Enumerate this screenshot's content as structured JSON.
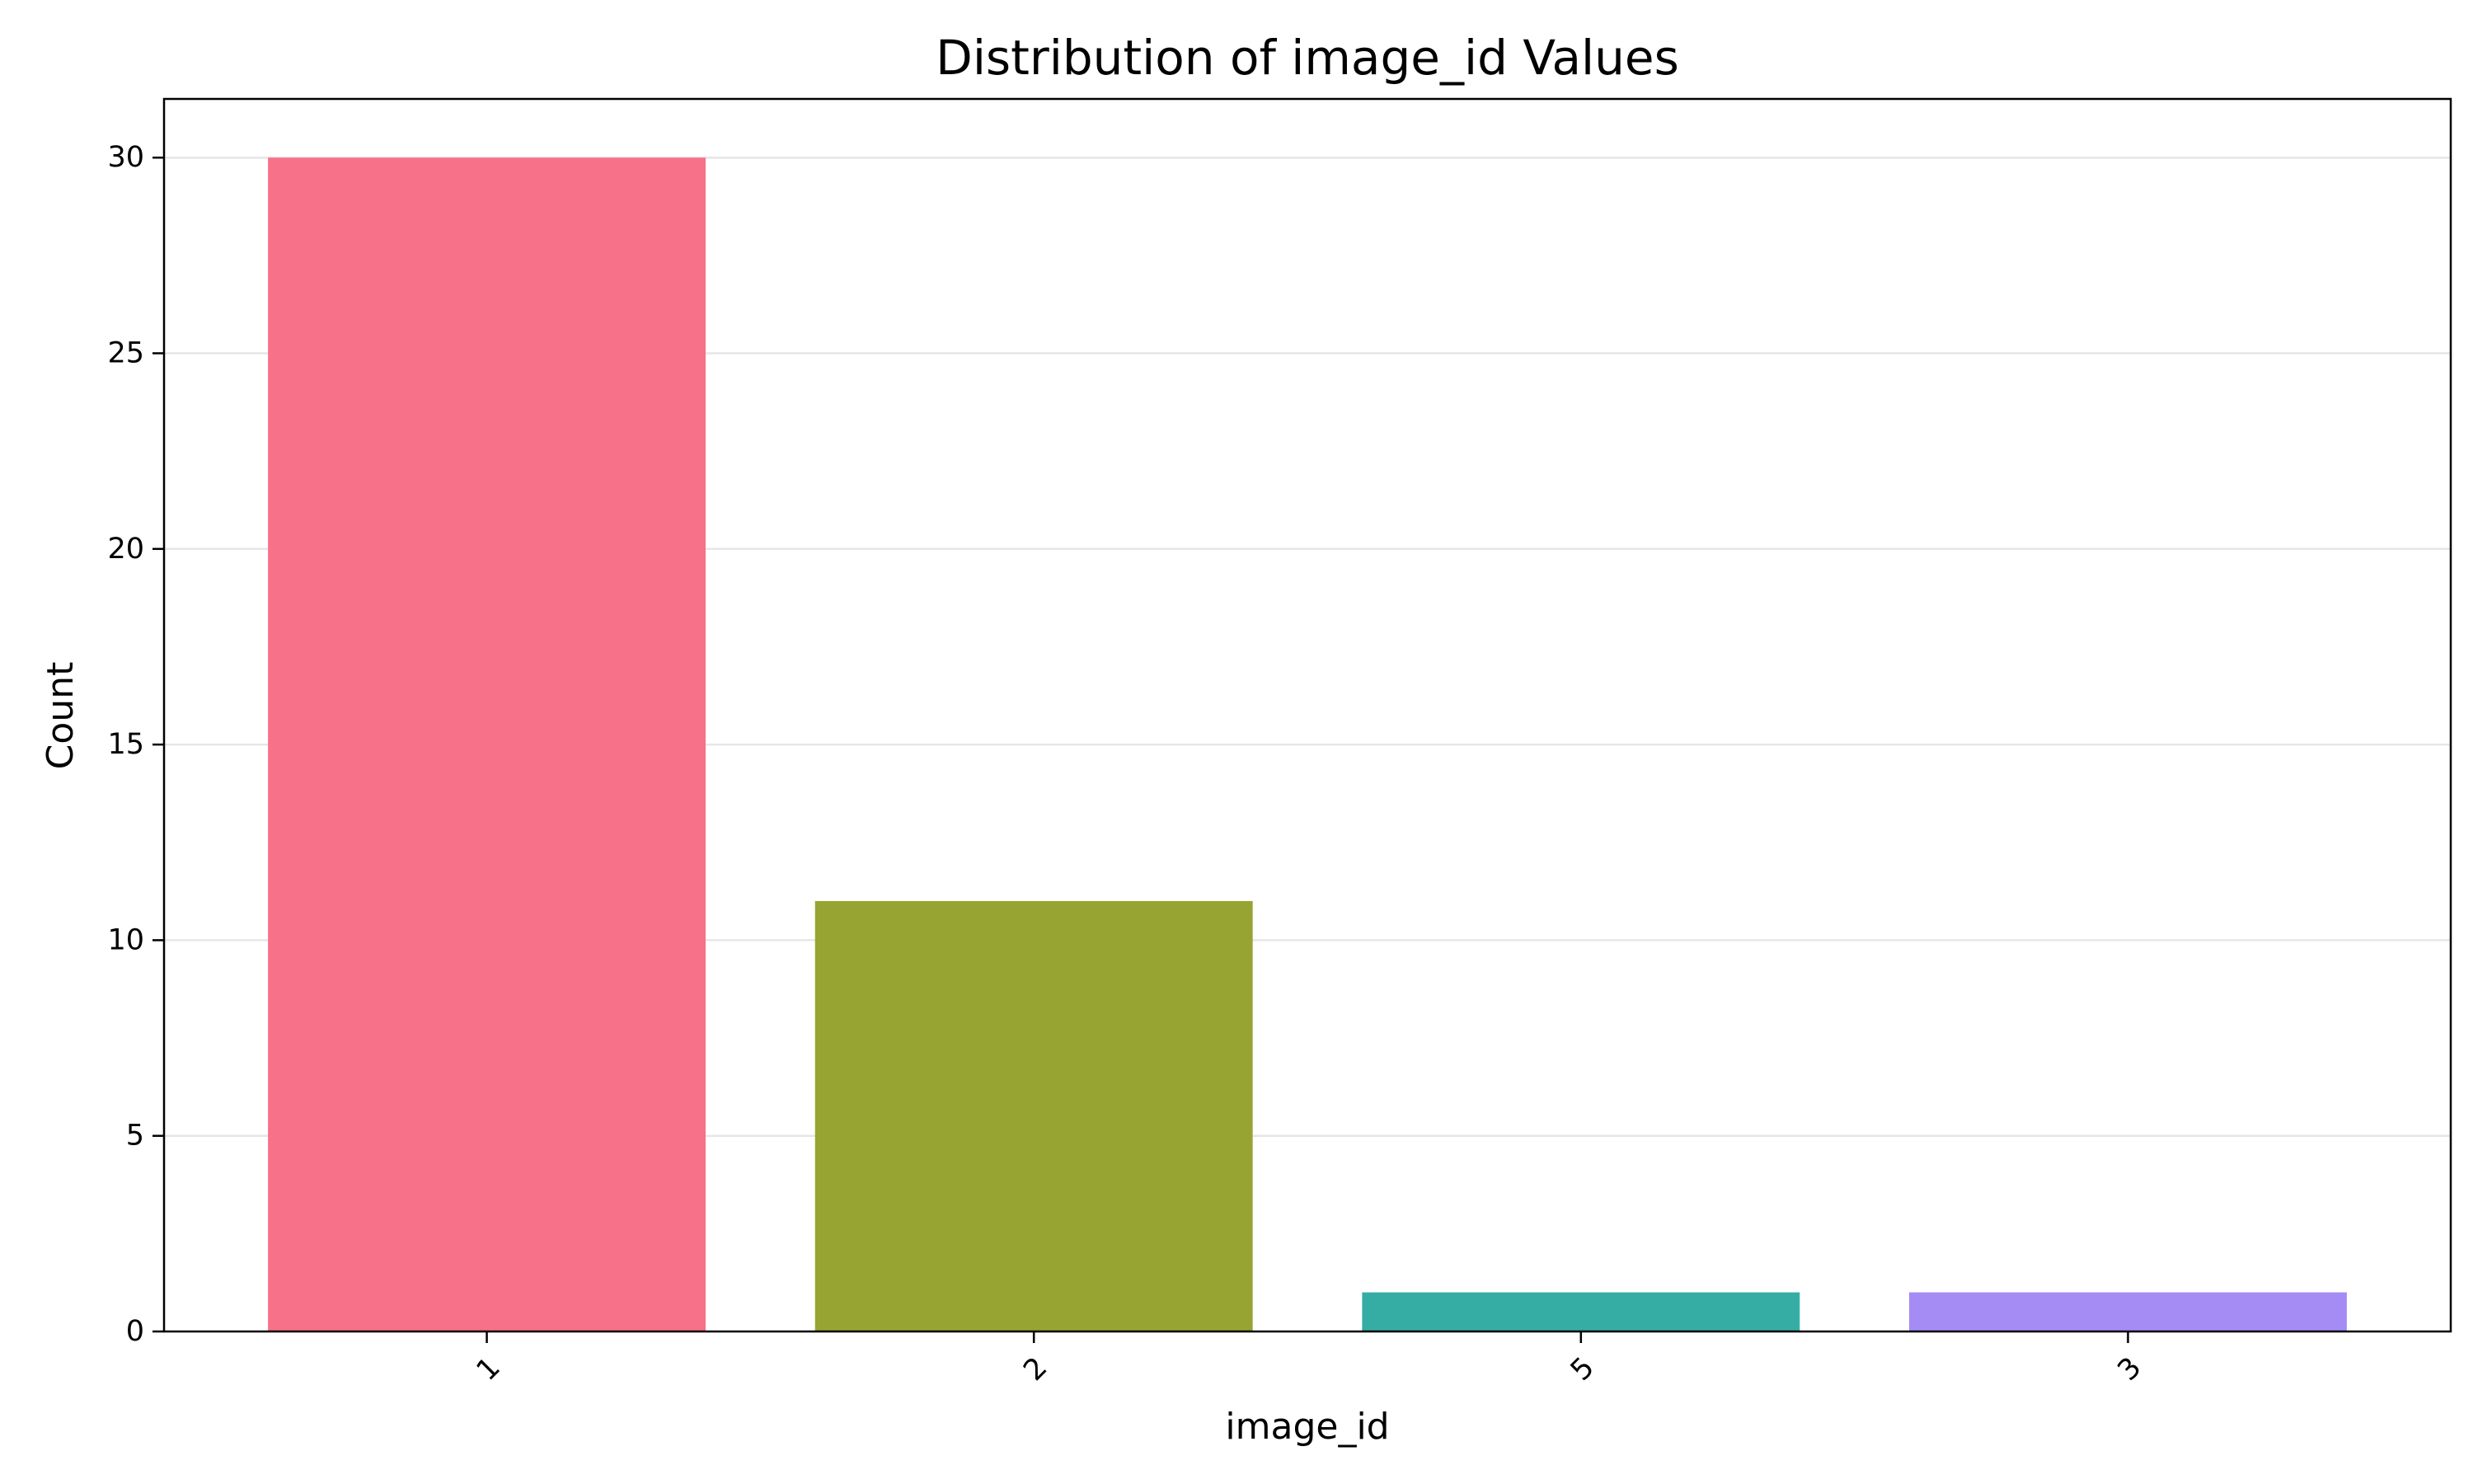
{
  "chart_data": {
    "type": "bar",
    "title": "Distribution of image_id Values",
    "xlabel": "image_id",
    "ylabel": "Count",
    "categories": [
      "1",
      "2",
      "5",
      "3"
    ],
    "values": [
      30,
      11,
      1,
      1
    ],
    "colors": [
      "#f77189",
      "#97a431",
      "#36ada4",
      "#a48cf4"
    ],
    "ylim": [
      0,
      31.5
    ],
    "yticks": [
      0,
      5,
      10,
      15,
      20,
      25,
      30
    ],
    "grid": "y-axis",
    "legend": "none",
    "xtick_rotation": -45
  }
}
